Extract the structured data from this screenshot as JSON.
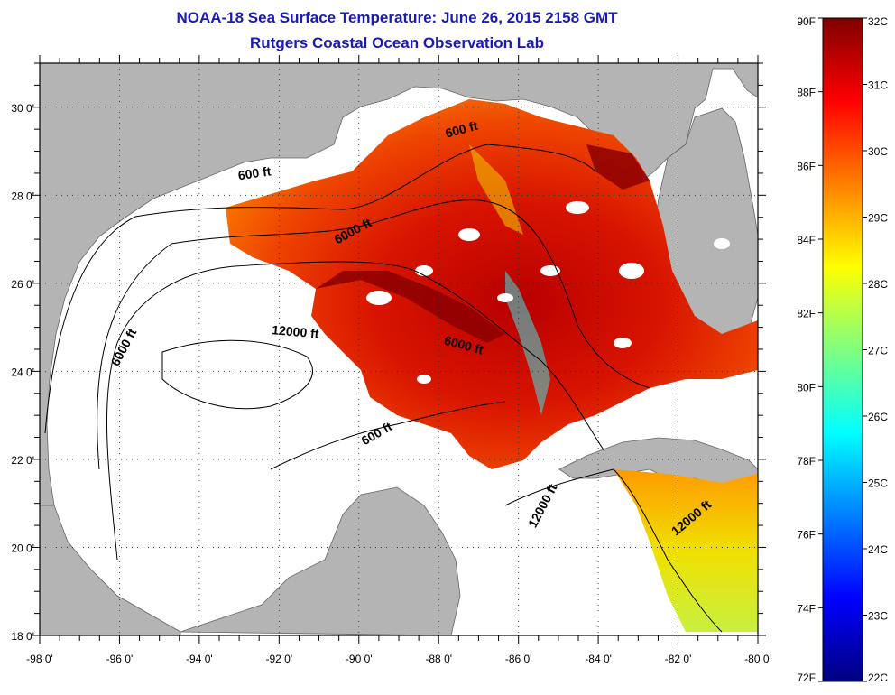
{
  "title": "NOAA-18 Sea Surface Temperature:  June 26, 2015 2158 GMT",
  "subtitle": "Rutgers Coastal Ocean Observation Lab",
  "map": {
    "lon_range": [
      -98,
      -80
    ],
    "lat_range": [
      18,
      31
    ],
    "x_ticks": [
      "-98 0'",
      "-96 0'",
      "-94 0'",
      "-92 0'",
      "-90 0'",
      "-88 0'",
      "-86 0'",
      "-84 0'",
      "-82 0'",
      "-80 0'"
    ],
    "y_ticks": [
      "18 0'",
      "20 0'",
      "22 0'",
      "24 0'",
      "26 0'",
      "28 0'",
      "30 0'"
    ],
    "grid": "dotted",
    "land_color": "#b4b4b4",
    "contour_labels": [
      {
        "text": "600 ft",
        "lon": -92.6,
        "lat": 28.4,
        "angle": -8
      },
      {
        "text": "600 ft",
        "lon": -87.4,
        "lat": 29.4,
        "angle": -15
      },
      {
        "text": "6000 ft",
        "lon": -90.1,
        "lat": 27.1,
        "angle": -28
      },
      {
        "text": "6000 ft",
        "lon": -95.8,
        "lat": 24.5,
        "angle": -62
      },
      {
        "text": "12000 ft",
        "lon": -91.6,
        "lat": 24.8,
        "angle": 5
      },
      {
        "text": "6000 ft",
        "lon": -87.4,
        "lat": 24.5,
        "angle": 15
      },
      {
        "text": "600 ft",
        "lon": -89.5,
        "lat": 22.5,
        "angle": -30
      },
      {
        "text": "12000 ft",
        "lon": -85.3,
        "lat": 20.9,
        "angle": -62
      },
      {
        "text": "12000 ft",
        "lon": -81.6,
        "lat": 20.6,
        "angle": -40
      }
    ]
  },
  "colorbar": {
    "range_f": [
      72,
      90
    ],
    "range_c": [
      22,
      32
    ],
    "f_labels": [
      "90F",
      "88F",
      "86F",
      "84F",
      "82F",
      "80F",
      "78F",
      "76F",
      "74F",
      "72F"
    ],
    "c_labels": [
      "32C",
      "31C",
      "30C",
      "29C",
      "28C",
      "27C",
      "26C",
      "25C",
      "24C",
      "23C",
      "22C"
    ],
    "colors": [
      "#00007f",
      "#0000ff",
      "#007fff",
      "#00ffff",
      "#7fff7f",
      "#ffff00",
      "#ff7f00",
      "#ff0000",
      "#7f0000"
    ]
  }
}
